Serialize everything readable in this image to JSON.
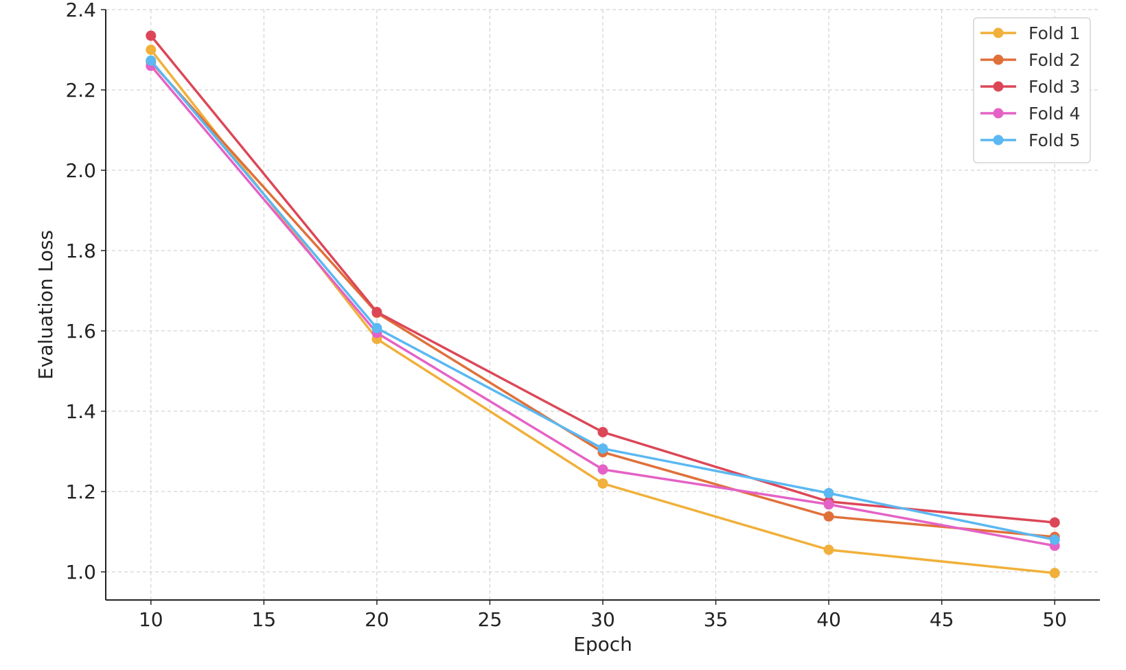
{
  "chart_data": {
    "type": "line",
    "title": "",
    "xlabel": "Epoch",
    "ylabel": "Evaluation Loss",
    "x": [
      10,
      20,
      30,
      40,
      50
    ],
    "xlim": [
      8,
      52
    ],
    "ylim": [
      0.93,
      2.4
    ],
    "xticks": [
      10,
      15,
      20,
      25,
      30,
      35,
      40,
      45,
      50
    ],
    "yticks": [
      1.0,
      1.2,
      1.4,
      1.6,
      1.8,
      2.0,
      2.2,
      2.4
    ],
    "grid": true,
    "legend_position": "top-right",
    "series": [
      {
        "name": "Fold 1",
        "color": "#F0B03A",
        "values": [
          2.3,
          1.58,
          1.22,
          1.055,
          0.997
        ]
      },
      {
        "name": "Fold 2",
        "color": "#E0703A",
        "values": [
          2.27,
          1.645,
          1.298,
          1.138,
          1.087
        ]
      },
      {
        "name": "Fold 3",
        "color": "#DC4757",
        "values": [
          2.335,
          1.647,
          1.348,
          1.175,
          1.123
        ]
      },
      {
        "name": "Fold 4",
        "color": "#E462C6",
        "values": [
          2.26,
          1.595,
          1.255,
          1.168,
          1.065
        ]
      },
      {
        "name": "Fold 5",
        "color": "#5BB8F2",
        "values": [
          2.273,
          1.607,
          1.307,
          1.196,
          1.08
        ]
      }
    ]
  }
}
